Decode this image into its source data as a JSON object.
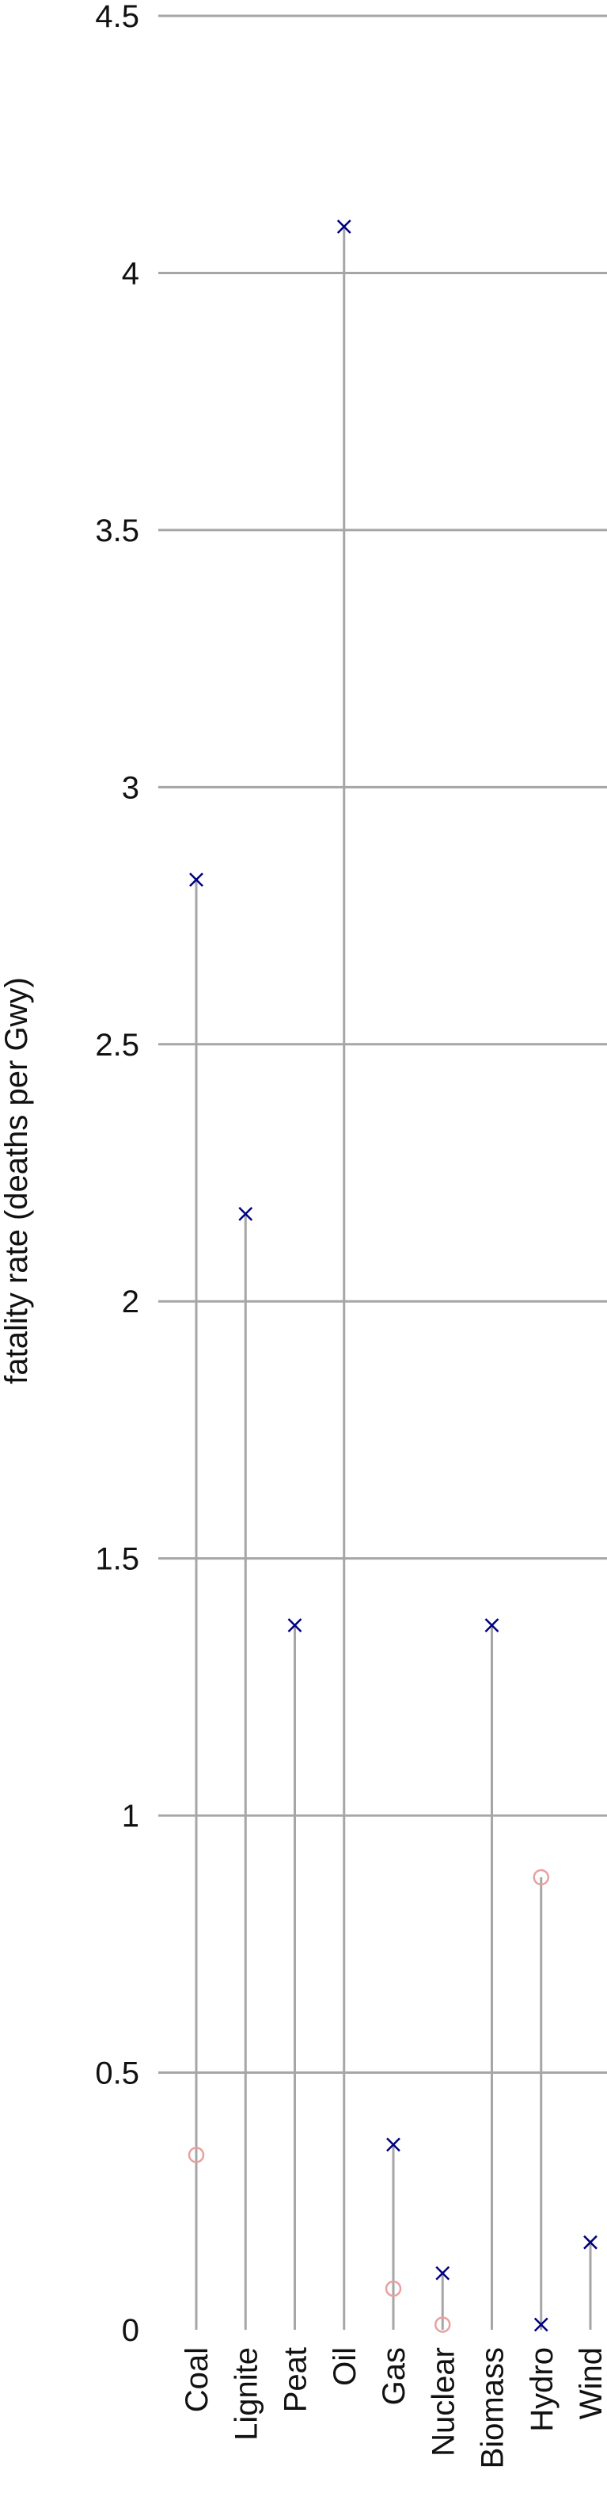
{
  "chart_data": {
    "type": "scatter",
    "ylabel": "fatality rate (deaths per Gwy)",
    "ylim": [
      0,
      4.5
    ],
    "yticks": [
      0,
      0.5,
      1,
      1.5,
      2,
      2.5,
      3,
      3.5,
      4,
      4.5
    ],
    "ytick_labels": [
      "0",
      "0.5",
      "1",
      "1.5",
      "2",
      "2.5",
      "3",
      "3.5",
      "4",
      "4.5"
    ],
    "grid": true,
    "categories": [
      "Coal",
      "Lignite",
      "Peat",
      "Oil",
      "Gas",
      "Nuclear",
      "Biomass",
      "Hydro",
      "Wind"
    ],
    "series": [
      {
        "marker": "cross",
        "color": "#000080",
        "values": [
          2.82,
          2.17,
          1.37,
          4.09,
          0.36,
          0.11,
          1.37,
          0.01,
          0.17
        ]
      },
      {
        "marker": "circle",
        "color": "#e8a0a0",
        "values": [
          0.34,
          null,
          null,
          null,
          0.08,
          0.01,
          null,
          0.88,
          null
        ]
      }
    ],
    "stem_color": "#a6a6a6",
    "grid_color": "#a6a6a6"
  }
}
